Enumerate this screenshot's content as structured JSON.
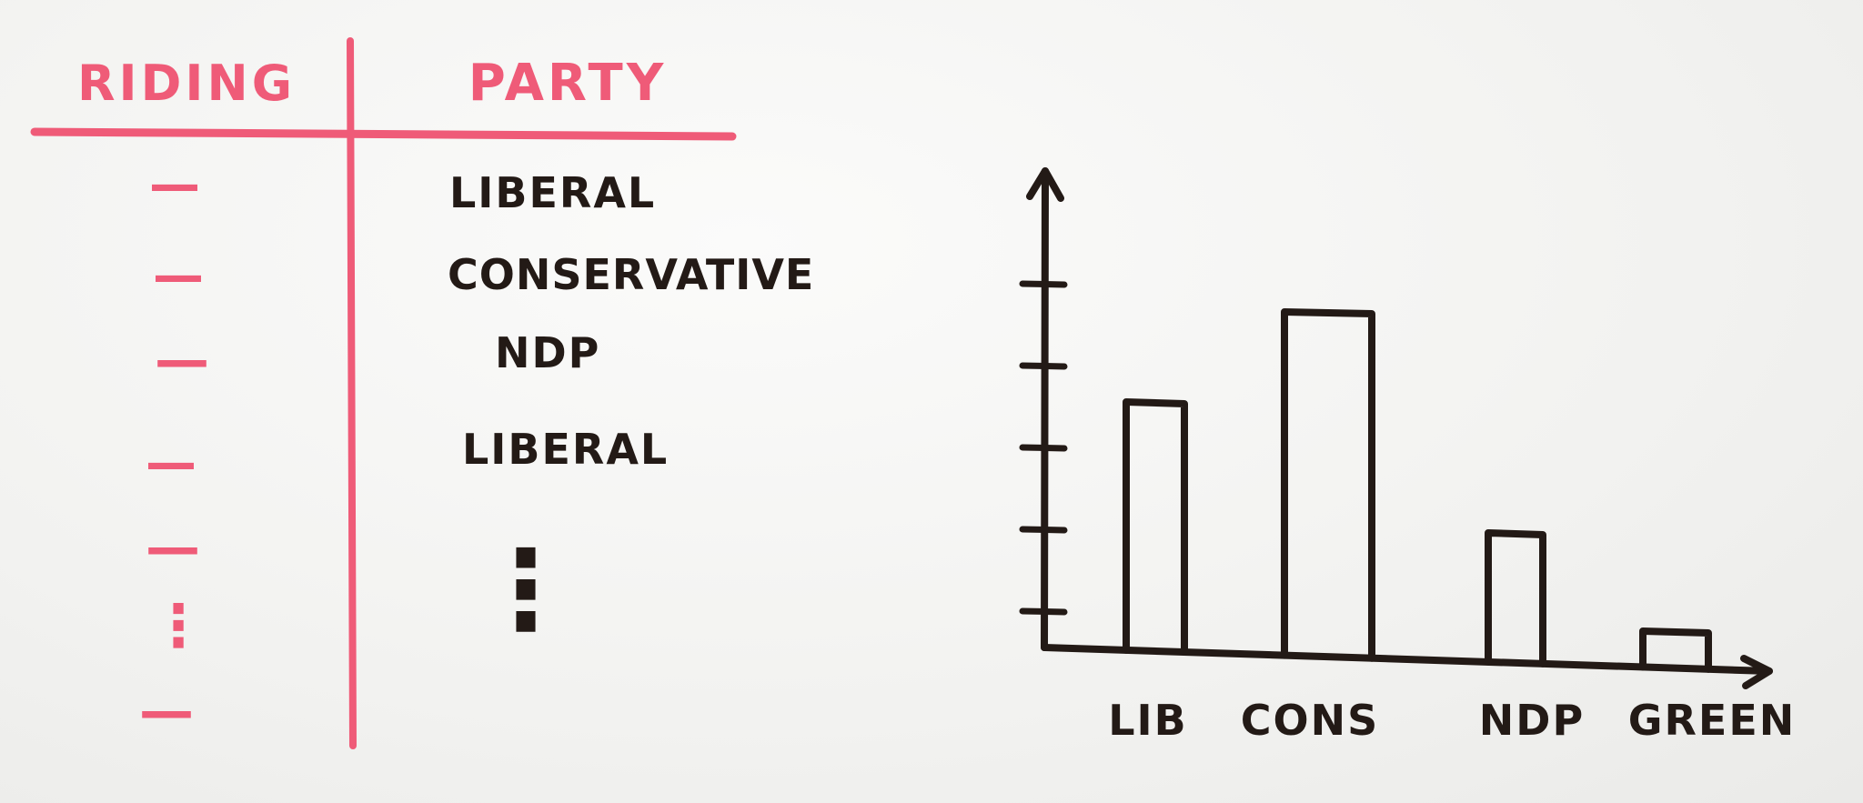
{
  "table": {
    "headers": {
      "riding": "RIDING",
      "party": "PARTY"
    },
    "rows": [
      {
        "riding": "—",
        "party": "LIBERAL"
      },
      {
        "riding": "—",
        "party": "CONSERVATIVE"
      },
      {
        "riding": "—",
        "party": "NDP"
      },
      {
        "riding": "—",
        "party": "LIBERAL"
      },
      {
        "riding": "—",
        "party": ""
      },
      {
        "riding": "⋮",
        "party": "⋮"
      },
      {
        "riding": "—",
        "party": ""
      }
    ],
    "colors": {
      "table": "#ef5b78",
      "text": "#231a16"
    }
  },
  "chart_data": {
    "type": "bar",
    "categories": [
      "LIB",
      "CONS",
      "NDP",
      "GREEN"
    ],
    "values": [
      3,
      4.1,
      1.4,
      0.2
    ],
    "ylim": [
      0,
      5
    ],
    "yticks": [
      1,
      2,
      3,
      4,
      5
    ],
    "grid": false,
    "color": "#231a16"
  }
}
